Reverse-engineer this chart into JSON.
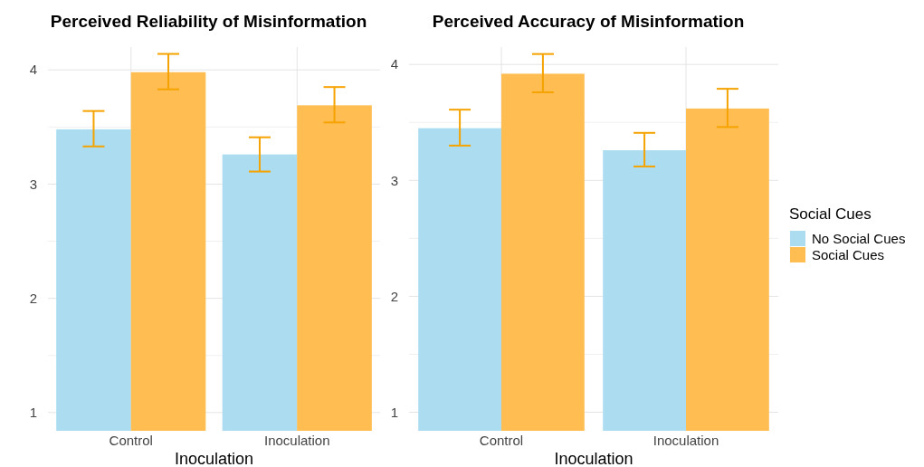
{
  "chart_data": [
    {
      "type": "bar",
      "title": "Perceived Reliability of Misinformation",
      "xlabel": "Inoculation",
      "categories": [
        "Control",
        "Inoculation"
      ],
      "ylim": [
        0.84,
        4.2
      ],
      "yticks": [
        1,
        2,
        3,
        4
      ],
      "grid": true,
      "legend": false,
      "series": [
        {
          "color": "#abdcf0",
          "values": [
            3.48,
            3.26
          ],
          "errors": [
            [
              3.33,
              3.64
            ],
            [
              3.11,
              3.41
            ]
          ]
        },
        {
          "color": "#ffbd52",
          "values": [
            3.98,
            3.69
          ],
          "errors": [
            [
              3.83,
              4.14
            ],
            [
              3.54,
              3.85
            ]
          ]
        }
      ]
    },
    {
      "type": "bar",
      "title": "Perceived Accuracy of Misinformation",
      "xlabel": "Inoculation",
      "categories": [
        "Control",
        "Inoculation"
      ],
      "ylim": [
        0.84,
        4.15
      ],
      "yticks": [
        1,
        2,
        3,
        4
      ],
      "grid": true,
      "legend": "right",
      "legend_title": "Social Cues",
      "series": [
        {
          "name": "No Social Cues",
          "color": "#abdcf0",
          "values": [
            3.45,
            3.26
          ],
          "errors": [
            [
              3.3,
              3.61
            ],
            [
              3.12,
              3.41
            ]
          ]
        },
        {
          "name": "Social Cues",
          "color": "#ffbd52",
          "values": [
            3.92,
            3.62
          ],
          "errors": [
            [
              3.76,
              4.09
            ],
            [
              3.46,
              3.79
            ]
          ]
        }
      ]
    }
  ]
}
